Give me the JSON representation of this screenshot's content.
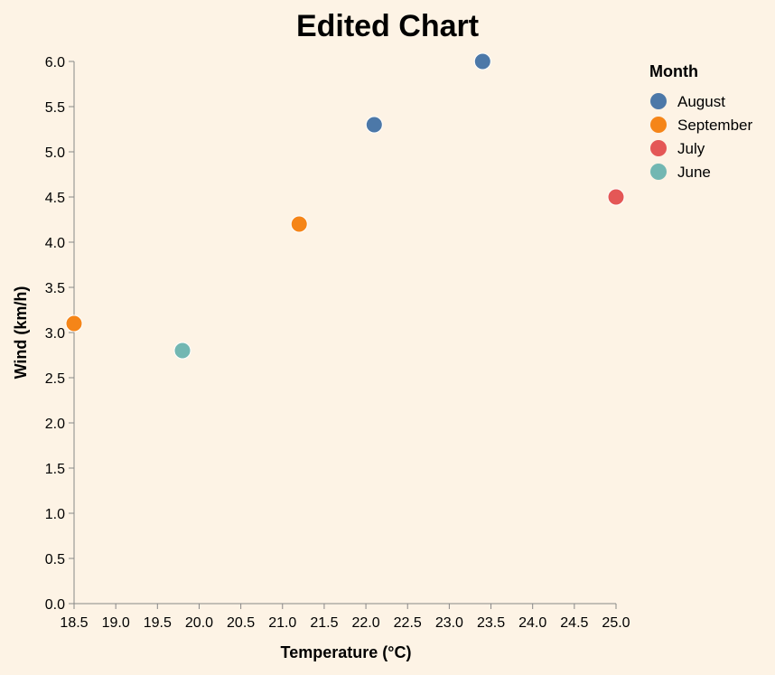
{
  "chart_data": {
    "type": "scatter",
    "title": "Edited Chart",
    "xlabel": "Temperature (°C)",
    "ylabel": "Wind (km/h)",
    "xlim": [
      18.5,
      25.0
    ],
    "ylim": [
      0.0,
      6.0
    ],
    "x_ticks": [
      "18.5",
      "19.0",
      "19.5",
      "20.0",
      "20.5",
      "21.0",
      "21.5",
      "22.0",
      "22.5",
      "23.0",
      "23.5",
      "24.0",
      "24.5",
      "25.0"
    ],
    "y_ticks": [
      "0.0",
      "0.5",
      "1.0",
      "1.5",
      "2.0",
      "2.5",
      "3.0",
      "3.5",
      "4.0",
      "4.5",
      "5.0",
      "5.5",
      "6.0"
    ],
    "grid": false,
    "legend": {
      "title": "Month",
      "placement": "top-right",
      "entries": [
        {
          "name": "August",
          "color": "#4c78a8"
        },
        {
          "name": "September",
          "color": "#f58518"
        },
        {
          "name": "July",
          "color": "#e45756"
        },
        {
          "name": "June",
          "color": "#72b7b2"
        }
      ]
    },
    "points": [
      {
        "x": 18.5,
        "y": 3.1,
        "month": "September"
      },
      {
        "x": 19.8,
        "y": 2.8,
        "month": "June"
      },
      {
        "x": 21.2,
        "y": 4.2,
        "month": "September"
      },
      {
        "x": 22.1,
        "y": 5.3,
        "month": "August"
      },
      {
        "x": 23.4,
        "y": 6.0,
        "month": "August"
      },
      {
        "x": 25.0,
        "y": 4.5,
        "month": "July"
      }
    ],
    "background_color": "#fdf3e5",
    "axis_color": "#888888"
  }
}
